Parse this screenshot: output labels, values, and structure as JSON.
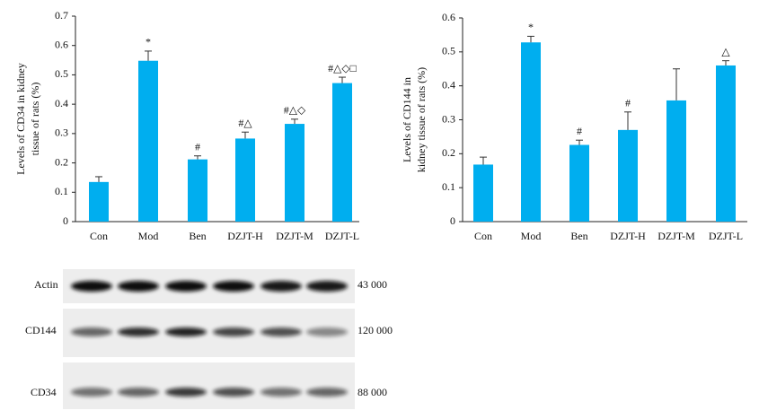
{
  "chart_data": [
    {
      "type": "bar",
      "ylabel": [
        "Levels of CD34 in kidney",
        "tissue of rats (%)"
      ],
      "categories": [
        "Con",
        "Mod",
        "Ben",
        "DZJT-H",
        "DZJT-M",
        "DZJT-L"
      ],
      "values": [
        0.135,
        0.548,
        0.212,
        0.283,
        0.333,
        0.472
      ],
      "errors": [
        0.018,
        0.033,
        0.012,
        0.022,
        0.016,
        0.02
      ],
      "annotations": [
        null,
        "*",
        "#",
        "#△",
        "#△◇",
        "#△◇□"
      ],
      "color": "#00aeef",
      "ylim": [
        0,
        0.7
      ],
      "yticks": [
        0,
        0.1,
        0.2,
        0.3,
        0.4,
        0.5,
        0.6,
        0.7
      ]
    },
    {
      "type": "bar",
      "ylabel": [
        "Levels of CD144 in",
        "kidney tissue of rats (%)"
      ],
      "categories": [
        "Con",
        "Mod",
        "Ben",
        "DZJT-H",
        "DZJT-M",
        "DZJT-L"
      ],
      "values": [
        0.168,
        0.528,
        0.226,
        0.27,
        0.357,
        0.46
      ],
      "errors": [
        0.022,
        0.018,
        0.014,
        0.053,
        0.093,
        0.014
      ],
      "annotations": [
        null,
        "*",
        "#",
        "#",
        null,
        "△"
      ],
      "color": "#00aeef",
      "ylim": [
        0,
        0.6
      ],
      "yticks": [
        0,
        0.1,
        0.2,
        0.3,
        0.4,
        0.5,
        0.6
      ]
    }
  ],
  "blot": {
    "rows": [
      {
        "protein": "Actin",
        "weight": "43 000"
      },
      {
        "protein": "CD144",
        "weight": "120 000"
      },
      {
        "protein": "CD34",
        "weight": "88 000"
      }
    ]
  }
}
